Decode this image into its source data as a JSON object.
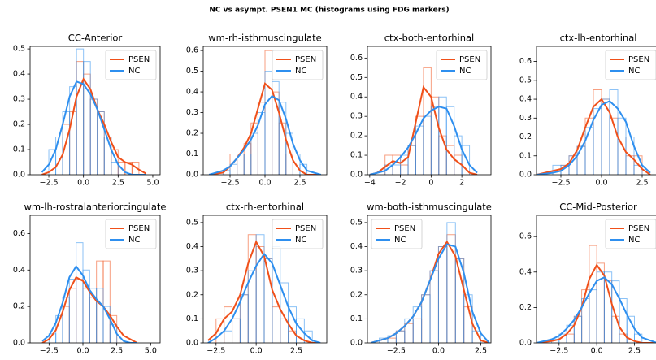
{
  "title": "NC vs asympt. PSEN1 MC (histograms using FDG markers)",
  "chart_data": [
    {
      "type": "histogram-kde",
      "title": "CC-Anterior",
      "legend": "upper right",
      "xlim": [
        -3.85,
        5.53
      ],
      "ylim": [
        0,
        0.51
      ],
      "xticks": [
        {
          "value": -2.5,
          "label": "−2.5"
        },
        {
          "value": 0,
          "label": "0.0"
        },
        {
          "value": 2.5,
          "label": "2.5"
        },
        {
          "value": 5,
          "label": "5.0"
        }
      ],
      "yticks": [
        {
          "value": 0,
          "label": "0.0"
        },
        0.1,
        0.2,
        0.3,
        0.4,
        0.5
      ],
      "x": [
        -3,
        -2.5,
        -2,
        -1.5,
        -1,
        -0.5,
        0,
        0.5,
        1,
        1.5,
        2,
        2.5,
        3,
        3.5,
        4,
        4.5
      ],
      "series": [
        {
          "name": "PSEN",
          "color": "#f0501a",
          "values": [
            0,
            0.01,
            0.03,
            0.08,
            0.18,
            0.31,
            0.38,
            0.34,
            0.26,
            0.2,
            0.13,
            0.07,
            0.05,
            0.04,
            0.02,
            0.005
          ],
          "bins": [
            -1.5,
            -1,
            -0.5,
            0,
            0.5,
            1,
            1.5,
            2,
            2.5,
            3,
            3.5,
            4
          ],
          "counts": [
            0.2,
            0.25,
            0.45,
            0.4,
            0.3,
            0.25,
            0.15,
            0.1,
            0.05,
            0.05,
            0.05
          ]
        },
        {
          "name": "NC",
          "color": "#2e8fef",
          "values": [
            0.01,
            0.04,
            0.1,
            0.2,
            0.31,
            0.37,
            0.36,
            0.32,
            0.26,
            0.18,
            0.1,
            0.04,
            0.01,
            0,
            0,
            0
          ],
          "bins": [
            -2.5,
            -2,
            -1.5,
            -1,
            -0.5,
            0,
            0.5,
            1,
            1.5,
            2,
            2.5
          ],
          "counts": [
            0.1,
            0.15,
            0.25,
            0.35,
            0.5,
            0.45,
            0.3,
            0.25,
            0.15,
            0.05
          ]
        }
      ]
    },
    {
      "type": "histogram-kde",
      "title": "wm-rh-isthmuscingulate",
      "legend": "upper right",
      "xlim": [
        -4.42,
        4.42
      ],
      "ylim": [
        0,
        0.62
      ],
      "xticks": [
        {
          "value": -2.5,
          "label": "−2.5"
        },
        {
          "value": 0,
          "label": "0.0"
        },
        {
          "value": 2.5,
          "label": "2.5"
        }
      ],
      "yticks": [
        {
          "value": 0,
          "label": "0.0"
        },
        0.1,
        0.2,
        0.3,
        0.4,
        0.5,
        0.6
      ],
      "x": [
        -4,
        -3,
        -2.5,
        -2,
        -1.5,
        -1,
        -0.5,
        0,
        0.5,
        1,
        1.5,
        2,
        2.5,
        3,
        4
      ],
      "series": [
        {
          "name": "PSEN",
          "color": "#f0501a",
          "values": [
            0,
            0.01,
            0.04,
            0.08,
            0.13,
            0.2,
            0.32,
            0.44,
            0.41,
            0.3,
            0.17,
            0.07,
            0.02,
            0,
            0
          ],
          "bins": [
            -2.5,
            -2,
            -1.5,
            -1,
            -0.5,
            0,
            0.5,
            1,
            1.5,
            2
          ],
          "counts": [
            0.1,
            0.1,
            0.15,
            0.25,
            0.35,
            0.6,
            0.4,
            0.25,
            0.1
          ]
        },
        {
          "name": "NC",
          "color": "#2e8fef",
          "values": [
            0,
            0.02,
            0.04,
            0.08,
            0.12,
            0.17,
            0.24,
            0.34,
            0.38,
            0.36,
            0.27,
            0.15,
            0.07,
            0.02,
            0
          ],
          "bins": [
            -3,
            -2.5,
            -2,
            -1.5,
            -1,
            -0.5,
            0,
            0.5,
            1,
            1.5,
            2,
            2.5,
            3
          ],
          "counts": [
            0.02,
            0.05,
            0.1,
            0.1,
            0.2,
            0.3,
            0.5,
            0.45,
            0.35,
            0.2,
            0.1,
            0.05
          ]
        }
      ]
    },
    {
      "type": "histogram-kde",
      "title": "ctx-both-entorhinal",
      "legend": "upper right",
      "xlim": [
        -4.15,
        3.9
      ],
      "ylim": [
        0,
        0.66
      ],
      "xticks": [
        {
          "value": -4,
          "label": "−4"
        },
        {
          "value": -2,
          "label": "−2"
        },
        0,
        2
      ],
      "yticks": [
        {
          "value": 0,
          "label": "0.0"
        },
        0.1,
        0.2,
        0.3,
        0.4,
        0.5,
        0.6
      ],
      "x": [
        -4,
        -3.5,
        -3,
        -2.5,
        -2,
        -1.5,
        -1,
        -0.5,
        0,
        0.5,
        1,
        1.5,
        2,
        2.5,
        3
      ],
      "series": [
        {
          "name": "PSEN",
          "color": "#f0501a",
          "values": [
            0,
            0.01,
            0.04,
            0.07,
            0.06,
            0.09,
            0.27,
            0.45,
            0.4,
            0.24,
            0.13,
            0.08,
            0.05,
            0.01,
            0
          ],
          "bins": [
            -3,
            -2.5,
            -2,
            -1.5,
            -1,
            -0.5,
            0,
            0.5,
            1,
            1.5,
            2
          ],
          "counts": [
            0.1,
            0.1,
            0.05,
            0.15,
            0.3,
            0.55,
            0.4,
            0.2,
            0.15,
            0.1
          ]
        },
        {
          "name": "NC",
          "color": "#2e8fef",
          "values": [
            0,
            0.01,
            0.02,
            0.05,
            0.09,
            0.14,
            0.21,
            0.29,
            0.33,
            0.35,
            0.34,
            0.25,
            0.13,
            0.05,
            0.01
          ],
          "bins": [
            -3,
            -2.5,
            -2,
            -1.5,
            -1,
            -0.5,
            0,
            0.5,
            1,
            1.5,
            2,
            2.5
          ],
          "counts": [
            0.05,
            0.05,
            0.1,
            0.15,
            0.25,
            0.3,
            0.35,
            0.4,
            0.35,
            0.2,
            0.15
          ]
        }
      ]
    },
    {
      "type": "histogram-kde",
      "title": "ctx-lh-entorhinal",
      "legend": "upper right",
      "xlim": [
        -4,
        3.6
      ],
      "ylim": [
        0,
        0.68
      ],
      "xticks": [
        {
          "value": -2.5,
          "label": "−2.5"
        },
        {
          "value": 0,
          "label": "0.0"
        },
        {
          "value": 2.5,
          "label": "2.5"
        }
      ],
      "yticks": [
        {
          "value": 0,
          "label": "0.0"
        },
        0.1,
        0.2,
        0.3,
        0.4,
        0.5,
        0.6
      ],
      "x": [
        -4,
        -3,
        -2.5,
        -2,
        -1.5,
        -1,
        -0.5,
        0,
        0.5,
        1,
        1.5,
        2,
        2.5,
        3
      ],
      "series": [
        {
          "name": "PSEN",
          "color": "#f0501a",
          "values": [
            0,
            0.02,
            0.03,
            0.06,
            0.13,
            0.25,
            0.36,
            0.4,
            0.33,
            0.2,
            0.12,
            0.08,
            0.03,
            0
          ],
          "bins": [
            -2.5,
            -2,
            -1.5,
            -1,
            -0.5,
            0,
            0.5,
            1,
            1.5,
            2,
            2.5
          ],
          "counts": [
            0.05,
            0.1,
            0.15,
            0.3,
            0.45,
            0.4,
            0.3,
            0.2,
            0.1,
            0.1
          ]
        },
        {
          "name": "NC",
          "color": "#2e8fef",
          "values": [
            0,
            0.01,
            0.02,
            0.05,
            0.1,
            0.18,
            0.29,
            0.37,
            0.39,
            0.35,
            0.28,
            0.15,
            0.05,
            0.01
          ],
          "bins": [
            -3,
            -2.5,
            -2,
            -1.5,
            -1,
            -0.5,
            0,
            0.5,
            1,
            1.5,
            2,
            2.5
          ],
          "counts": [
            0.05,
            0.05,
            0.1,
            0.15,
            0.25,
            0.35,
            0.4,
            0.45,
            0.3,
            0.2,
            0.05
          ]
        }
      ]
    },
    {
      "type": "histogram-kde",
      "title": "wm-lh-rostralanteriorcingulate",
      "legend": "upper right",
      "xlim": [
        -3.9,
        5.7
      ],
      "ylim": [
        0,
        0.7
      ],
      "xticks": [
        {
          "value": -2.5,
          "label": "−2.5"
        },
        {
          "value": 0,
          "label": "0.0"
        },
        {
          "value": 2.5,
          "label": "2.5"
        },
        {
          "value": 5,
          "label": "5.0"
        }
      ],
      "yticks": [
        {
          "value": 0,
          "label": "0.0"
        },
        0.2,
        0.4,
        0.6
      ],
      "x": [
        -3,
        -2.5,
        -2,
        -1.5,
        -1,
        -0.5,
        0,
        0.5,
        1,
        1.5,
        2,
        2.5,
        3,
        3.5,
        4
      ],
      "series": [
        {
          "name": "PSEN",
          "color": "#f0501a",
          "values": [
            0,
            0.02,
            0.07,
            0.17,
            0.29,
            0.36,
            0.34,
            0.28,
            0.23,
            0.2,
            0.15,
            0.09,
            0.04,
            0.02,
            0
          ],
          "bins": [
            -1.5,
            -1,
            -0.5,
            0,
            0.5,
            1,
            1.5,
            2,
            2.5
          ],
          "counts": [
            0.2,
            0.3,
            0.35,
            0.3,
            0.25,
            0.45,
            0.45,
            0.15
          ]
        },
        {
          "name": "NC",
          "color": "#2e8fef",
          "values": [
            0.01,
            0.04,
            0.11,
            0.22,
            0.36,
            0.42,
            0.37,
            0.29,
            0.24,
            0.2,
            0.13,
            0.05,
            0.01,
            0,
            0
          ],
          "bins": [
            -2.5,
            -2,
            -1.5,
            -1,
            -0.5,
            0,
            0.5,
            1,
            1.5,
            2,
            2.5
          ],
          "counts": [
            0.05,
            0.15,
            0.25,
            0.35,
            0.55,
            0.4,
            0.3,
            0.3,
            0.2,
            0.1
          ]
        }
      ]
    },
    {
      "type": "histogram-kde",
      "title": "ctx-rh-entorhinal",
      "legend": "upper right",
      "xlim": [
        -3.3,
        4.4
      ],
      "ylim": [
        0,
        0.53
      ],
      "xticks": [
        {
          "value": -2.5,
          "label": "−2.5"
        },
        {
          "value": 0,
          "label": "0.0"
        },
        {
          "value": 2.5,
          "label": "2.5"
        }
      ],
      "yticks": [
        {
          "value": 0,
          "label": "0.0"
        },
        0.1,
        0.2,
        0.3,
        0.4,
        0.5
      ],
      "x": [
        -3,
        -2.5,
        -2,
        -1.5,
        -1,
        -0.5,
        0,
        0.5,
        1,
        1.5,
        2,
        2.5,
        3,
        3.5,
        4
      ],
      "series": [
        {
          "name": "PSEN",
          "color": "#f0501a",
          "values": [
            0.01,
            0.04,
            0.1,
            0.13,
            0.2,
            0.33,
            0.42,
            0.36,
            0.22,
            0.14,
            0.08,
            0.03,
            0.01,
            0,
            0
          ],
          "bins": [
            -2.5,
            -2,
            -1.5,
            -1,
            -0.5,
            0,
            0.5,
            1,
            1.5,
            2,
            2.5
          ],
          "counts": [
            0.1,
            0.15,
            0.1,
            0.2,
            0.45,
            0.4,
            0.35,
            0.15,
            0.1,
            0.05
          ]
        },
        {
          "name": "NC",
          "color": "#2e8fef",
          "values": [
            0,
            0.02,
            0.05,
            0.1,
            0.17,
            0.25,
            0.32,
            0.37,
            0.33,
            0.24,
            0.15,
            0.08,
            0.04,
            0.01,
            0
          ],
          "bins": [
            -2,
            -1.5,
            -1,
            -0.5,
            0,
            0.5,
            1,
            1.5,
            2,
            2.5,
            3,
            3.5
          ],
          "counts": [
            0.05,
            0.1,
            0.2,
            0.3,
            0.45,
            0.35,
            0.4,
            0.25,
            0.15,
            0.1,
            0.05
          ]
        }
      ]
    },
    {
      "type": "histogram-kde",
      "title": "wm-both-isthmuscingulate",
      "legend": "upper left",
      "xlim": [
        -4.2,
        3.1
      ],
      "ylim": [
        0,
        0.53
      ],
      "xticks": [
        {
          "value": -2.5,
          "label": "−2.5"
        },
        {
          "value": 0,
          "label": "0.0"
        },
        {
          "value": 2.5,
          "label": "2.5"
        }
      ],
      "yticks": [
        {
          "value": 0,
          "label": "0.0"
        },
        0.1,
        0.2,
        0.3,
        0.4,
        0.5
      ],
      "x": [
        -4,
        -3.5,
        -3,
        -2.5,
        -2,
        -1.5,
        -1,
        -0.5,
        0,
        0.5,
        1,
        1.5,
        2,
        2.5,
        3
      ],
      "series": [
        {
          "name": "PSEN",
          "color": "#f0501a",
          "values": [
            0,
            0.01,
            0.02,
            0.04,
            0.07,
            0.11,
            0.17,
            0.26,
            0.37,
            0.42,
            0.36,
            0.22,
            0.08,
            0.01,
            0
          ],
          "bins": [
            -3,
            -2.5,
            -2,
            -1.5,
            -1,
            -0.5,
            0,
            0.5,
            1,
            1.5,
            2
          ],
          "counts": [
            0.02,
            0.05,
            0.08,
            0.1,
            0.2,
            0.3,
            0.4,
            0.45,
            0.35,
            0.15
          ]
        },
        {
          "name": "NC",
          "color": "#2e8fef",
          "values": [
            0,
            0.01,
            0.02,
            0.04,
            0.07,
            0.11,
            0.17,
            0.26,
            0.35,
            0.41,
            0.4,
            0.29,
            0.13,
            0.04,
            0
          ],
          "bins": [
            -3.5,
            -3,
            -2.5,
            -2,
            -1.5,
            -1,
            -0.5,
            0,
            0.5,
            1,
            1.5,
            2,
            2.5
          ],
          "counts": [
            0.02,
            0.03,
            0.05,
            0.1,
            0.15,
            0.2,
            0.3,
            0.4,
            0.5,
            0.35,
            0.2,
            0.05
          ]
        }
      ]
    },
    {
      "type": "histogram-kde",
      "title": "CC-Mid-Posterior",
      "legend": "upper right",
      "xlim": [
        -4,
        4.2
      ],
      "ylim": [
        0,
        0.72
      ],
      "xticks": [
        {
          "value": -2.5,
          "label": "−2.5"
        },
        {
          "value": 0,
          "label": "0.0"
        },
        {
          "value": 2.5,
          "label": "2.5"
        }
      ],
      "yticks": [
        {
          "value": 0,
          "label": "0.0"
        },
        0.2,
        0.4,
        0.6
      ],
      "x": [
        -4,
        -3,
        -2.5,
        -2,
        -1.5,
        -1,
        -0.5,
        0,
        0.5,
        1,
        1.5,
        2,
        2.5,
        3,
        4
      ],
      "series": [
        {
          "name": "PSEN",
          "color": "#f0501a",
          "values": [
            0,
            0.01,
            0.02,
            0.05,
            0.1,
            0.2,
            0.36,
            0.44,
            0.38,
            0.22,
            0.09,
            0.03,
            0.01,
            0,
            0
          ],
          "bins": [
            -2,
            -1.5,
            -1,
            -0.5,
            0,
            0.5,
            1,
            1.5,
            2
          ],
          "counts": [
            0.05,
            0.15,
            0.3,
            0.55,
            0.45,
            0.35,
            0.15,
            0.05
          ]
        },
        {
          "name": "NC",
          "color": "#2e8fef",
          "values": [
            0,
            0.02,
            0.04,
            0.08,
            0.13,
            0.2,
            0.28,
            0.35,
            0.37,
            0.33,
            0.25,
            0.16,
            0.08,
            0.03,
            0
          ],
          "bins": [
            -3,
            -2.5,
            -2,
            -1.5,
            -1,
            -0.5,
            0,
            0.5,
            1,
            1.5,
            2,
            2.5,
            3
          ],
          "counts": [
            0.02,
            0.05,
            0.1,
            0.15,
            0.25,
            0.3,
            0.4,
            0.4,
            0.35,
            0.25,
            0.15,
            0.05
          ]
        }
      ]
    }
  ]
}
